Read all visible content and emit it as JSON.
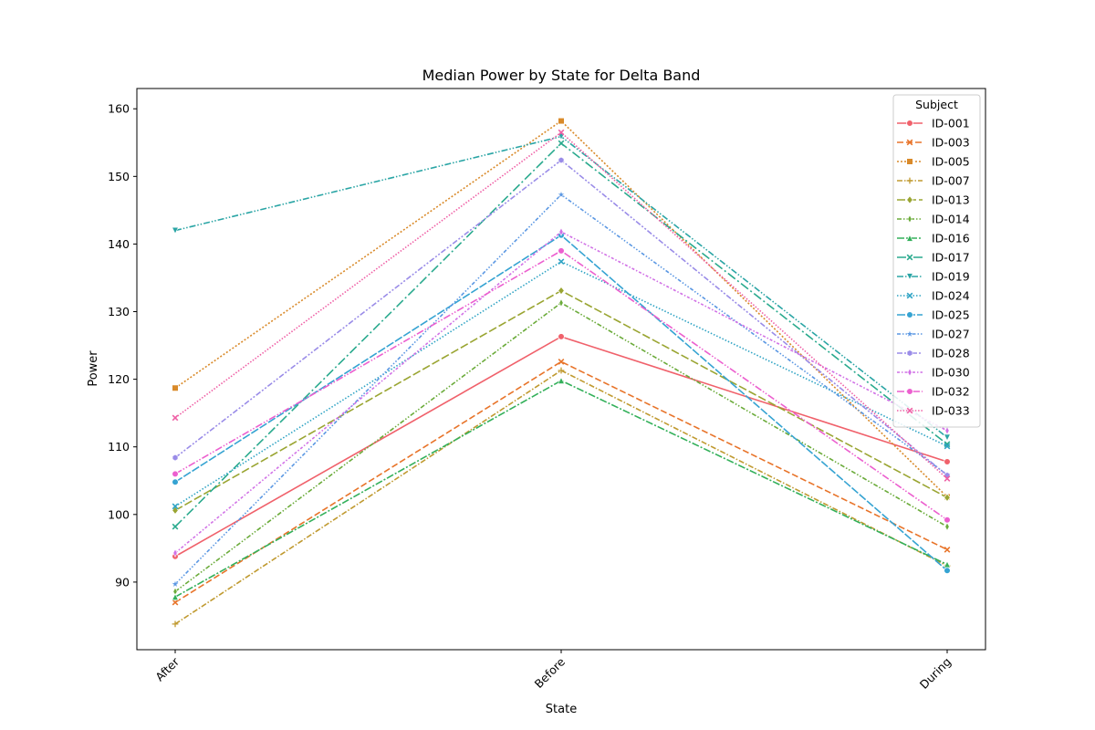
{
  "chart_data": {
    "type": "line",
    "title": "Median Power by State for Delta Band",
    "xlabel": "State",
    "ylabel": "Power",
    "categories": [
      "After",
      "Before",
      "During"
    ],
    "ylim": [
      80,
      163
    ],
    "yticks": [
      90,
      100,
      110,
      120,
      130,
      140,
      150,
      160
    ],
    "legend": {
      "title": "Subject",
      "position": "top-right"
    },
    "series": [
      {
        "name": "ID-001",
        "values": [
          93.8,
          126.3,
          107.8
        ],
        "color": "#f0616b",
        "dash": "solid",
        "marker": "circle"
      },
      {
        "name": "ID-003",
        "values": [
          87.0,
          122.6,
          94.8
        ],
        "color": "#e8742a",
        "dash": "dashed",
        "marker": "x"
      },
      {
        "name": "ID-005",
        "values": [
          118.7,
          158.2,
          102.6
        ],
        "color": "#d98a2a",
        "dash": "dotted",
        "marker": "square"
      },
      {
        "name": "ID-007",
        "values": [
          83.8,
          121.3,
          92.4
        ],
        "color": "#c09a30",
        "dash": "dashdot",
        "marker": "plus"
      },
      {
        "name": "ID-013",
        "values": [
          100.6,
          133.1,
          102.5
        ],
        "color": "#9aa532",
        "dash": "longdash",
        "marker": "diamond"
      },
      {
        "name": "ID-014",
        "values": [
          88.6,
          131.3,
          98.2
        ],
        "color": "#6bab3a",
        "dash": "dashdot2",
        "marker": "thindiamond"
      },
      {
        "name": "ID-016",
        "values": [
          87.8,
          119.8,
          92.6
        ],
        "color": "#33b05a",
        "dash": "dashdot3",
        "marker": "triangle"
      },
      {
        "name": "ID-017",
        "values": [
          98.2,
          154.9,
          110.4
        ],
        "color": "#2aaa8e",
        "dash": "longdashdot",
        "marker": "x"
      },
      {
        "name": "ID-019",
        "values": [
          142.0,
          155.9,
          111.4
        ],
        "color": "#2aa5a5",
        "dash": "dashdotdot",
        "marker": "triangledown"
      },
      {
        "name": "ID-024",
        "values": [
          101.2,
          137.4,
          110.1
        ],
        "color": "#2ea3c4",
        "dash": "densedot",
        "marker": "x"
      },
      {
        "name": "ID-025",
        "values": [
          104.8,
          141.3,
          91.7
        ],
        "color": "#35a3d2",
        "dash": "longdash2",
        "marker": "circle"
      },
      {
        "name": "ID-027",
        "values": [
          89.7,
          147.3,
          105.9
        ],
        "color": "#5a97e3",
        "dash": "dashdot4",
        "marker": "star"
      },
      {
        "name": "ID-028",
        "values": [
          108.4,
          152.4,
          105.8
        ],
        "color": "#9a8ce8",
        "dash": "dashdot5",
        "marker": "hexagon"
      },
      {
        "name": "ID-030",
        "values": [
          94.3,
          141.8,
          112.4
        ],
        "color": "#d171e6",
        "dash": "dashdot6",
        "marker": "thindiamond"
      },
      {
        "name": "ID-032",
        "values": [
          106.0,
          139.0,
          99.2
        ],
        "color": "#ec5fcf",
        "dash": "dashdot7",
        "marker": "circle"
      },
      {
        "name": "ID-033",
        "values": [
          114.3,
          156.5,
          105.3
        ],
        "color": "#ef5fa5",
        "dash": "densedot2",
        "marker": "x"
      }
    ]
  }
}
